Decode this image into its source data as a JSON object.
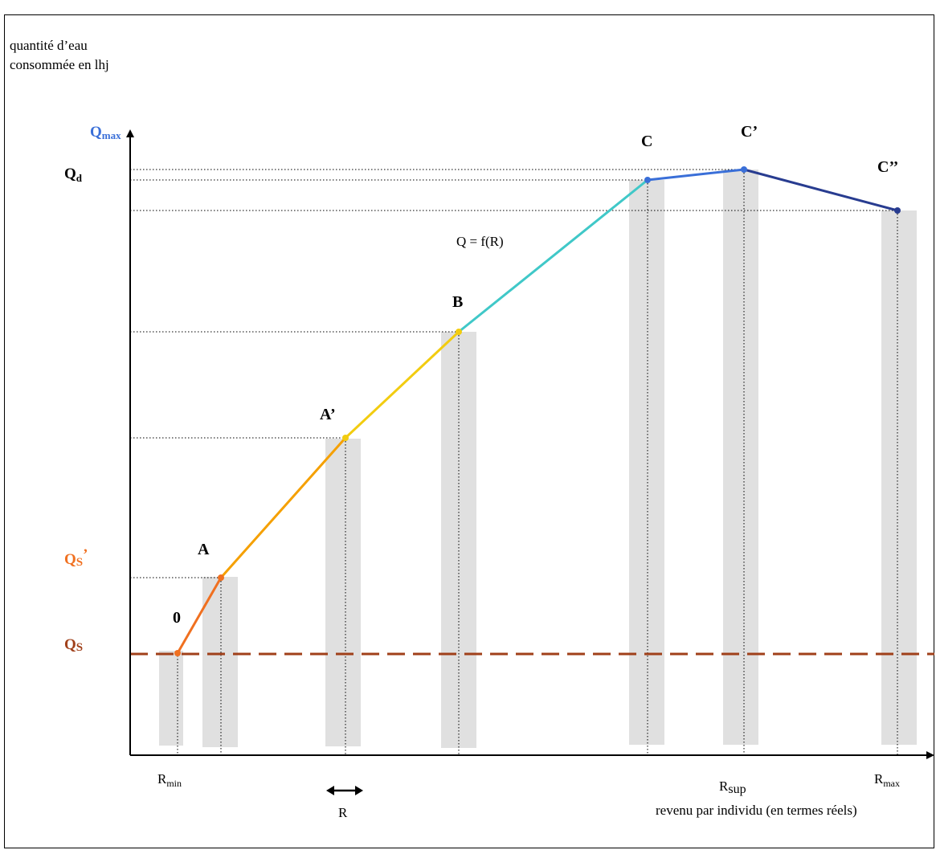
{
  "y_axis": {
    "title_line1": "quantité d’eau",
    "title_line2": "consommée en lhj"
  },
  "x_axis": {
    "title": "revenu par individu (en termes réels)"
  },
  "y_labels": {
    "qmax_main": "Q",
    "qmax_sub": "max",
    "qd_main": "Q",
    "qd_sub": "d",
    "qs_prime_main": "Q",
    "qs_prime_sub": "S",
    "qs_prime_mark": "’",
    "qs_main": "Q",
    "qs_sub": "S"
  },
  "x_labels": {
    "rmin_main": "R",
    "rmin_sub": "min",
    "rsup_main": "R",
    "rsup_sub": "sup",
    "rmax_main": "R",
    "rmax_sub": "max",
    "delta_r": "R"
  },
  "points": {
    "o": "0",
    "a": "A",
    "a_prime": "A’",
    "b": "B",
    "c": "C",
    "c_prime": "C’",
    "c_double_prime": "C’’"
  },
  "curve_label": "Q = f(R)",
  "colors": {
    "seg_o_a": "#f07020",
    "seg_a_a_prime": "#f5a000",
    "seg_a_prime_b": "#f2cc10",
    "seg_b_c": "#40c8c8",
    "seg_c_c_prime": "#3a6fd8",
    "seg_c_prime_c_double_prime": "#283c90",
    "qs_line": "#a0401a",
    "qmax_label": "#3a6fd8",
    "qs_prime_label": "#f07020",
    "qs_label": "#a0401a",
    "bars": "#e0e0e0"
  },
  "icons": {
    "double_arrow": "double-arrow-icon"
  }
}
